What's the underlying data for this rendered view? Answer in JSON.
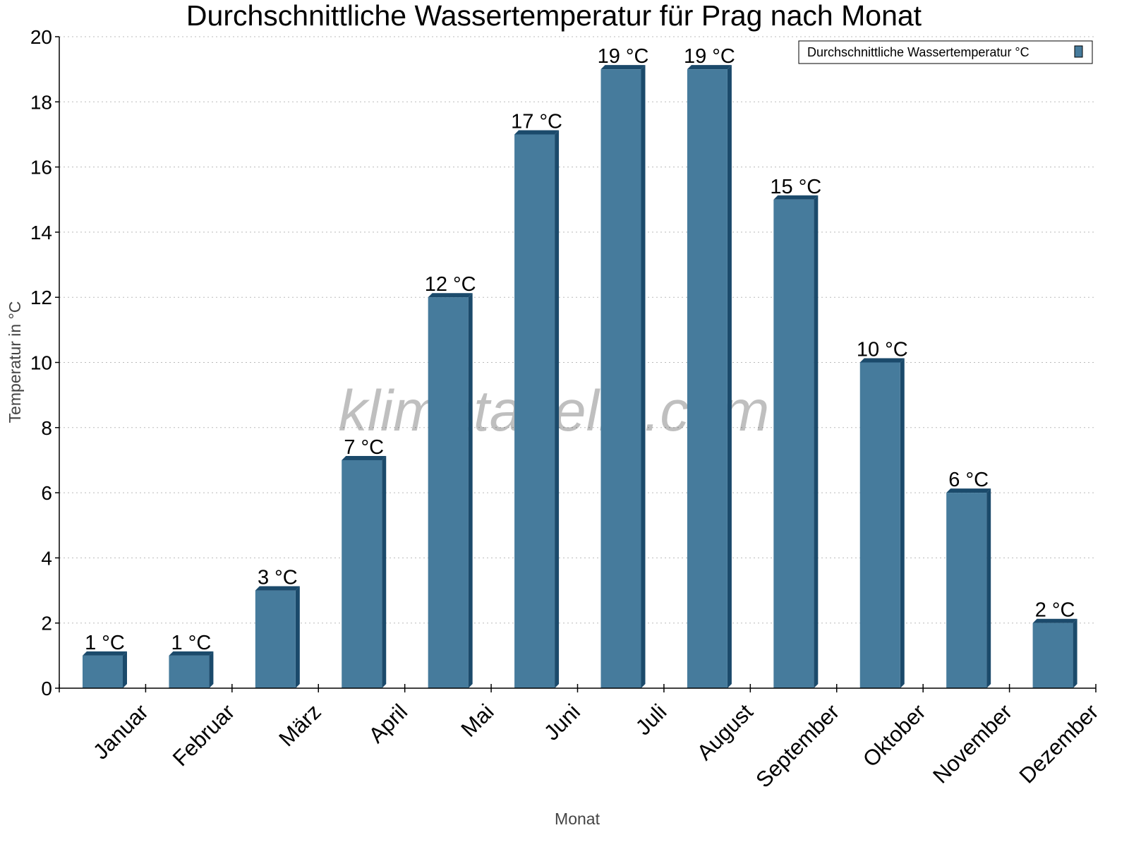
{
  "chart_data": {
    "type": "bar",
    "title": "Durchschnittliche Wassertemperatur für Prag nach Monat",
    "xlabel": "Monat",
    "ylabel": "Temperatur in °C",
    "categories": [
      "Januar",
      "Februar",
      "März",
      "April",
      "Mai",
      "Juni",
      "Juli",
      "August",
      "September",
      "Oktober",
      "November",
      "Dezember"
    ],
    "series": [
      {
        "name": "Durchschnittliche Wassertemperatur °C",
        "values": [
          1,
          1,
          3,
          7,
          12,
          17,
          19,
          19,
          15,
          10,
          6,
          2
        ]
      }
    ],
    "data_labels": [
      "1 °C",
      "1 °C",
      "3 °C",
      "7 °C",
      "12 °C",
      "17 °C",
      "19 °C",
      "19 °C",
      "15 °C",
      "10 °C",
      "6 °C",
      "2 °C"
    ],
    "ylim": [
      0,
      20
    ],
    "yticks": [
      0,
      2,
      4,
      6,
      8,
      10,
      12,
      14,
      16,
      18,
      20
    ],
    "grid": true,
    "legend_position": "top-right",
    "colors": {
      "bar": "#467b9c",
      "bar_side": "#1b4a6b"
    },
    "watermark": "klimatabelle.com"
  }
}
